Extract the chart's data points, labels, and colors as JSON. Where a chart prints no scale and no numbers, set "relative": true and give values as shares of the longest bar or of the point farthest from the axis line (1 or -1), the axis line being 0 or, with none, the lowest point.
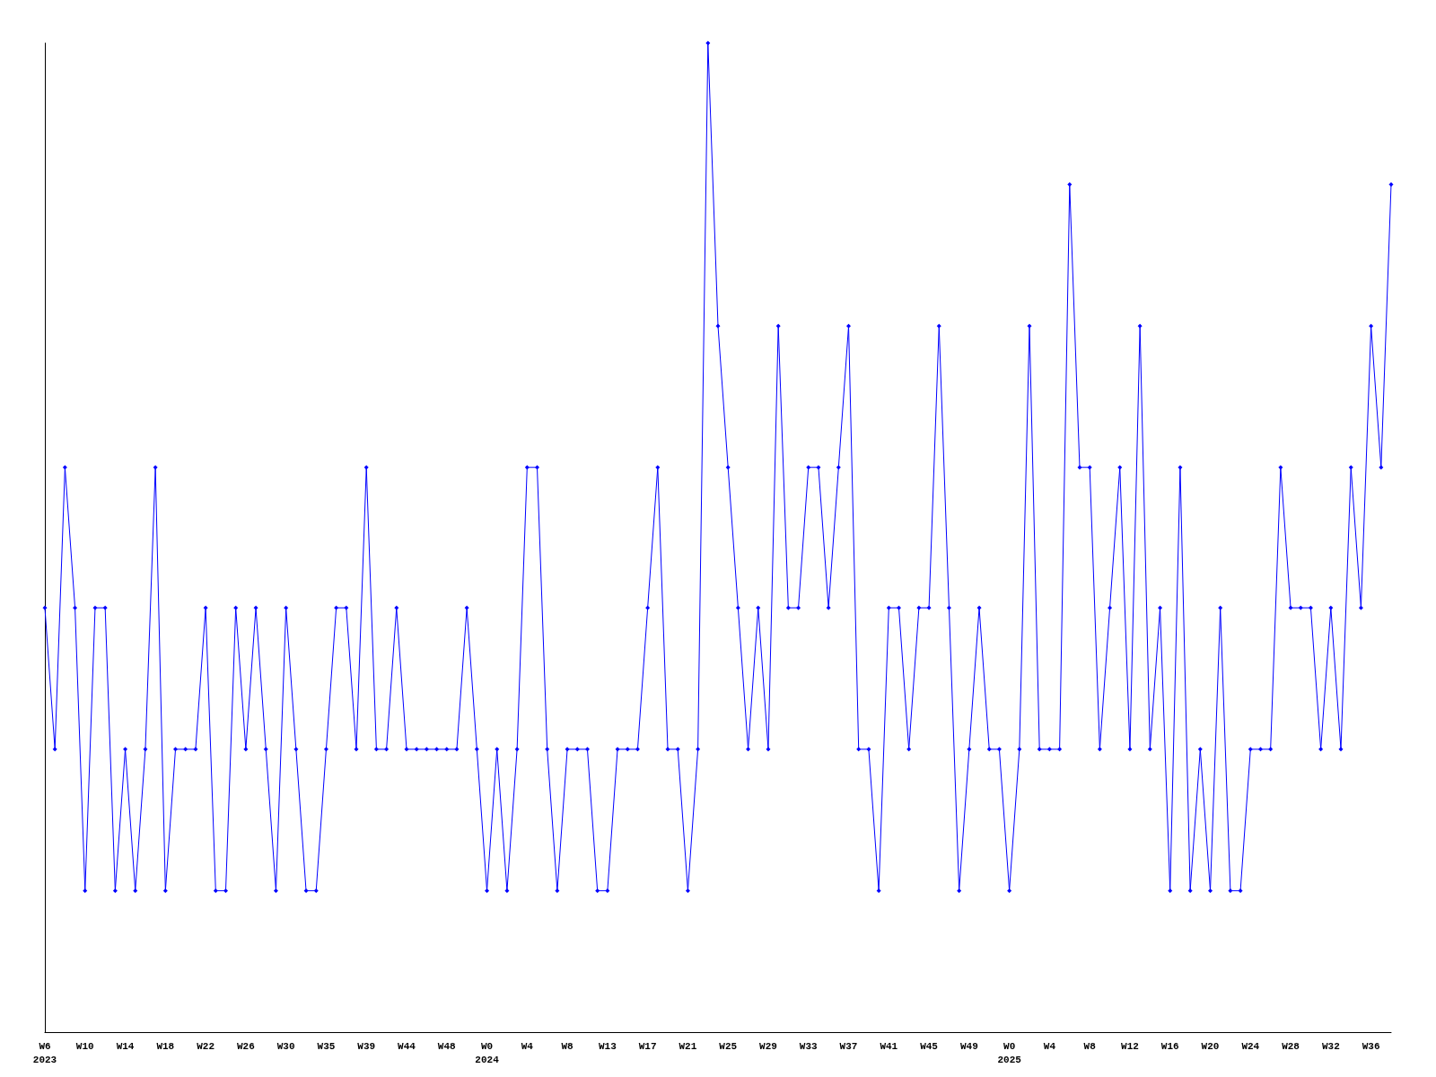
{
  "chart_data": {
    "type": "line",
    "relative": true,
    "grid": false,
    "marker": "diamond",
    "line_style": "solid",
    "categories": [
      "W6\n2023",
      null,
      null,
      null,
      "W10",
      null,
      null,
      null,
      "W14",
      null,
      null,
      null,
      "W18",
      null,
      null,
      null,
      "W22",
      null,
      null,
      null,
      "W26",
      null,
      null,
      null,
      "W30",
      null,
      null,
      null,
      "W35",
      null,
      null,
      null,
      "W39",
      null,
      null,
      null,
      "W44",
      null,
      null,
      null,
      "W48",
      null,
      null,
      null,
      "W0\n2024",
      null,
      null,
      null,
      "W4",
      null,
      null,
      null,
      "W8",
      null,
      null,
      null,
      "W13",
      null,
      null,
      null,
      "W17",
      null,
      null,
      null,
      "W21",
      null,
      null,
      null,
      "W25",
      null,
      null,
      null,
      "W29",
      null,
      null,
      null,
      "W33",
      null,
      null,
      null,
      "W37",
      null,
      null,
      null,
      "W41",
      null,
      null,
      null,
      "W45",
      null,
      null,
      null,
      "W49",
      null,
      null,
      null,
      "W0\n2025",
      null,
      null,
      null,
      "W4",
      null,
      null,
      null,
      "W8",
      null,
      null,
      null,
      "W12",
      null,
      null,
      null,
      "W16",
      null,
      null,
      null,
      "W20",
      null,
      null,
      null,
      "W24",
      null,
      null,
      null,
      "W28",
      null,
      null,
      null,
      "W32",
      null,
      null,
      null,
      "W36",
      null,
      null
    ],
    "series": [
      {
        "color": "#0000ff",
        "values": [
          0.429,
          0.286,
          0.571,
          0.429,
          0.143,
          0.429,
          0.429,
          0.143,
          0.286,
          0.143,
          0.286,
          0.571,
          0.143,
          0.286,
          0.286,
          0.286,
          0.429,
          0.143,
          0.143,
          0.429,
          0.286,
          0.429,
          0.286,
          0.143,
          0.429,
          0.286,
          0.143,
          0.143,
          0.286,
          0.429,
          0.429,
          0.286,
          0.571,
          0.286,
          0.286,
          0.429,
          0.286,
          0.286,
          0.286,
          0.286,
          0.286,
          0.286,
          0.429,
          0.286,
          0.143,
          0.286,
          0.143,
          0.286,
          0.571,
          0.571,
          0.286,
          0.143,
          0.286,
          0.286,
          0.286,
          0.143,
          0.143,
          0.286,
          0.286,
          0.286,
          0.429,
          0.571,
          0.286,
          0.286,
          0.143,
          0.286,
          1,
          0.714,
          0.571,
          0.429,
          0.286,
          0.429,
          0.286,
          0.714,
          0.429,
          0.429,
          0.571,
          0.571,
          0.429,
          0.571,
          0.714,
          0.286,
          0.286,
          0.143,
          0.429,
          0.429,
          0.286,
          0.429,
          0.429,
          0.714,
          0.429,
          0.143,
          0.286,
          0.429,
          0.286,
          0.286,
          0.143,
          0.286,
          0.714,
          0.286,
          0.286,
          0.286,
          0.857,
          0.571,
          0.571,
          0.286,
          0.429,
          0.571,
          0.286,
          0.714,
          0.286,
          0.429,
          0.143,
          0.571,
          0.143,
          0.286,
          0.143,
          0.429,
          0.143,
          0.143,
          0.286,
          0.286,
          0.286,
          0.571,
          0.429,
          0.429,
          0.429,
          0.286,
          0.429,
          0.286,
          0.571,
          0.429,
          0.714,
          0.571,
          0.857
        ]
      }
    ]
  }
}
